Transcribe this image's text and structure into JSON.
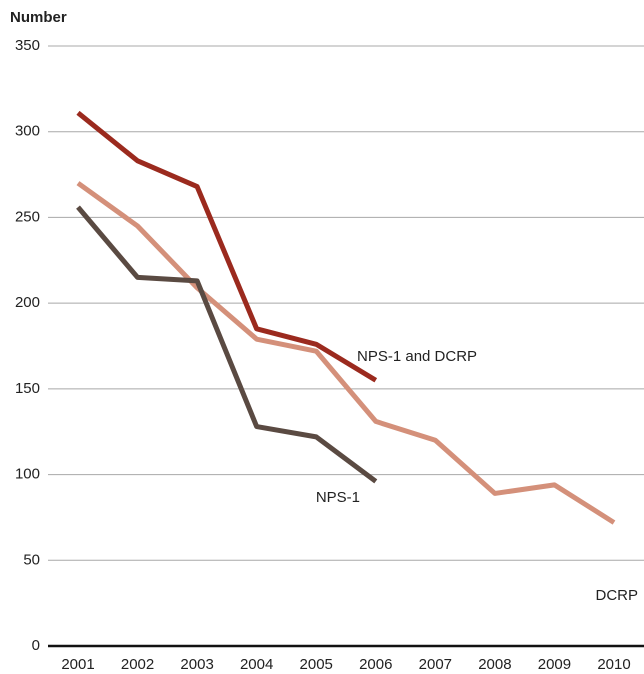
{
  "chart_data": {
    "type": "line",
    "y_label": "Number",
    "x": [
      "2001",
      "2002",
      "2003",
      "2004",
      "2005",
      "2006",
      "2007",
      "2008",
      "2009",
      "2010"
    ],
    "series": [
      {
        "name": "NPS-1 and DCRP",
        "color": "#9b2a1e",
        "values": [
          311,
          283,
          268,
          185,
          176,
          155,
          null,
          null,
          null,
          null
        ]
      },
      {
        "name": "DCRP",
        "color": "#d4907a",
        "values": [
          270,
          245,
          209,
          179,
          172,
          131,
          120,
          89,
          94,
          72
        ]
      },
      {
        "name": "NPS-1",
        "color": "#5a4a42",
        "values": [
          256,
          215,
          213,
          128,
          122,
          96,
          null,
          null,
          null,
          null
        ]
      }
    ],
    "ylim": [
      0,
      350
    ],
    "yticks": [
      0,
      50,
      100,
      150,
      200,
      250,
      300,
      350
    ],
    "grid": true
  }
}
